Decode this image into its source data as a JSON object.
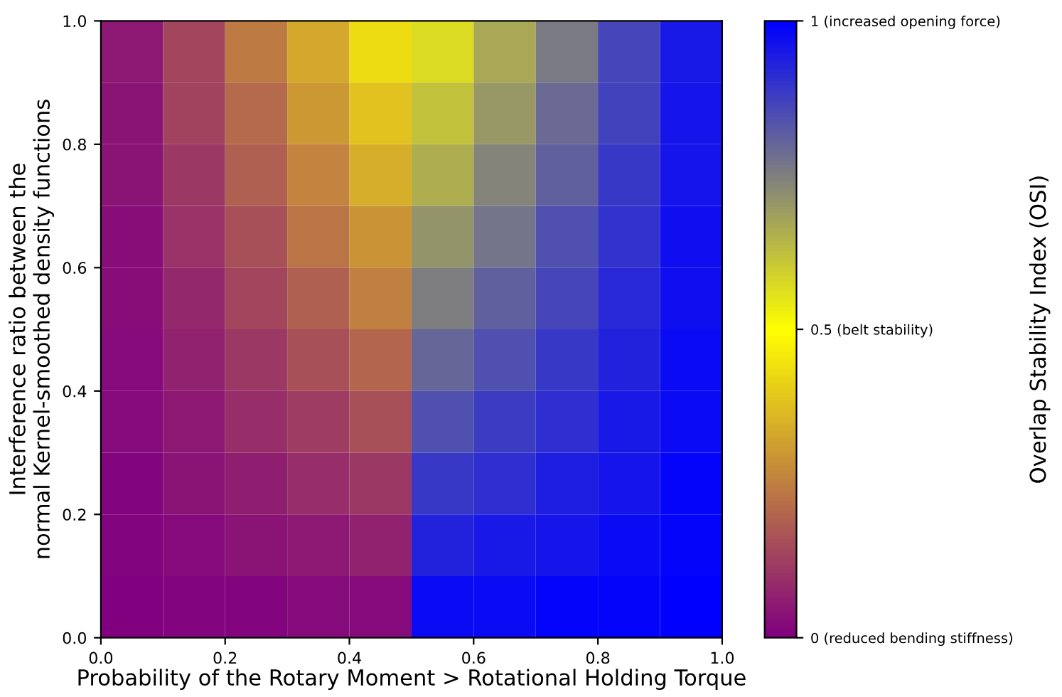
{
  "chart_data": {
    "type": "heatmap",
    "xlabel": "Probability of the Rotary Moment > Rotational Holding Torque",
    "ylabel": "Interference ratio between the\nnormal Kernel-smoothed density functions",
    "clabel": "Overlap Stability Index (OSI)",
    "xlim": [
      0,
      1
    ],
    "ylim": [
      0,
      1
    ],
    "xticks": [
      {
        "value": 0,
        "label": "0.0"
      },
      0.2,
      0.4,
      0.6,
      0.8,
      {
        "value": 1,
        "label": "1.0"
      }
    ],
    "yticks": [
      {
        "value": 0,
        "label": "0.0"
      },
      0.2,
      0.4,
      0.6,
      0.8,
      {
        "value": 1,
        "label": "1.0"
      }
    ],
    "colors": [
      "#800080",
      "#ffff00",
      "#0000ff"
    ],
    "clim": [
      0,
      1
    ],
    "cticks": [
      {
        "value": 0,
        "label": "0 (reduced bending stiffness)"
      },
      {
        "value": 0.5,
        "label": "0.5 (belt stability)"
      },
      {
        "value": 1,
        "label": "1 (increased opening force)"
      }
    ],
    "cells": [
      [
        0.05,
        0.14,
        0.24,
        0.33,
        0.43,
        0.57,
        0.67,
        0.76,
        0.86,
        0.95
      ],
      [
        0.04,
        0.13,
        0.21,
        0.3,
        0.38,
        0.62,
        0.7,
        0.79,
        0.87,
        0.96
      ],
      [
        0.04,
        0.11,
        0.19,
        0.26,
        0.34,
        0.66,
        0.74,
        0.81,
        0.89,
        0.96
      ],
      [
        0.03,
        0.1,
        0.16,
        0.23,
        0.29,
        0.71,
        0.77,
        0.84,
        0.9,
        0.97
      ],
      [
        0.03,
        0.08,
        0.14,
        0.19,
        0.25,
        0.75,
        0.81,
        0.86,
        0.92,
        0.97
      ],
      [
        0.02,
        0.07,
        0.11,
        0.16,
        0.2,
        0.8,
        0.84,
        0.89,
        0.93,
        0.98
      ],
      [
        0.02,
        0.05,
        0.09,
        0.12,
        0.16,
        0.84,
        0.88,
        0.91,
        0.95,
        0.98
      ],
      [
        0.01,
        0.04,
        0.06,
        0.09,
        0.11,
        0.89,
        0.91,
        0.94,
        0.96,
        0.99
      ],
      [
        0.01,
        0.02,
        0.04,
        0.05,
        0.07,
        0.93,
        0.95,
        0.96,
        0.98,
        0.99
      ],
      [
        0.0,
        0.01,
        0.01,
        0.02,
        0.02,
        0.98,
        0.98,
        0.99,
        0.99,
        1.0
      ]
    ]
  }
}
